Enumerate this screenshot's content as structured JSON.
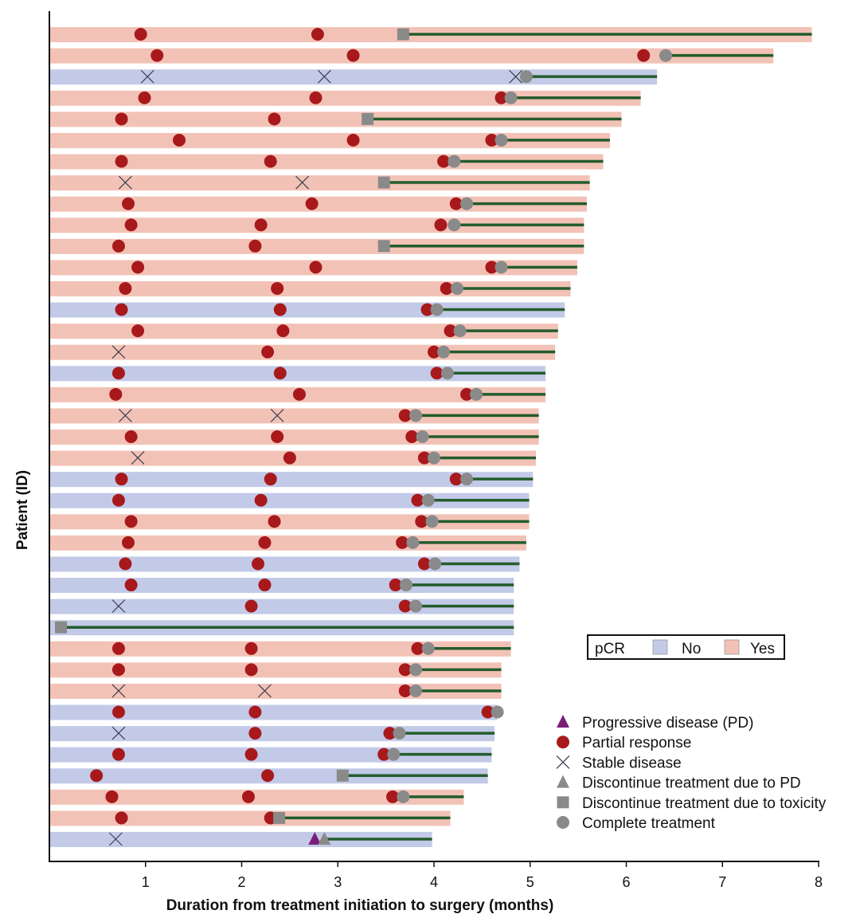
{
  "chart_data": {
    "type": "swimmer",
    "xlabel": "Duration from treatment initiation to surgery (months)",
    "ylabel": "Patient (ID)",
    "xlim": [
      0,
      8
    ],
    "xticks": [
      1,
      2,
      3,
      4,
      5,
      6,
      7,
      8
    ],
    "grid": false,
    "colors": {
      "pcr_no": "#c2cae8",
      "pcr_yes": "#f2c2b6",
      "PD": "#7a1f78",
      "PR": "#a8191c",
      "SD": "#3a4050",
      "DC_PD": "#8a8a8a",
      "DC_TOX": "#8a8a8a",
      "CT": "#8a8a8a",
      "line": "#245c2c"
    },
    "pcr_legend": {
      "title": "pCR",
      "no": "No",
      "yes": "Yes",
      "placement": "right"
    },
    "event_legend": [
      {
        "type": "PD",
        "label": "Progressive disease (PD)",
        "shape": "triangle"
      },
      {
        "type": "PR",
        "label": "Partial response",
        "shape": "circle"
      },
      {
        "type": "SD",
        "label": "Stable disease",
        "shape": "cross"
      },
      {
        "type": "DC_PD",
        "label": "Discontinue treatment due to PD",
        "shape": "triangle"
      },
      {
        "type": "DC_TOX",
        "label": "Discontinue treatment due to toxicity",
        "shape": "square"
      },
      {
        "type": "CT",
        "label": "Complete treatment",
        "shape": "circle"
      }
    ],
    "patients": [
      {
        "pcr": "Yes",
        "duration": 7.93,
        "events": [
          [
            "PR",
            0.95
          ],
          [
            "PR",
            2.79
          ],
          [
            "DC_TOX",
            3.68
          ]
        ]
      },
      {
        "pcr": "Yes",
        "duration": 7.53,
        "events": [
          [
            "PR",
            1.12
          ],
          [
            "PR",
            3.16
          ],
          [
            "PR",
            6.18
          ],
          [
            "CT",
            6.41
          ]
        ]
      },
      {
        "pcr": "No",
        "duration": 6.32,
        "events": [
          [
            "SD",
            1.02
          ],
          [
            "SD",
            2.86
          ],
          [
            "SD",
            4.85
          ],
          [
            "CT",
            4.96
          ]
        ]
      },
      {
        "pcr": "Yes",
        "duration": 6.15,
        "events": [
          [
            "PR",
            0.99
          ],
          [
            "PR",
            2.77
          ],
          [
            "PR",
            4.7
          ],
          [
            "CT",
            4.8
          ]
        ]
      },
      {
        "pcr": "Yes",
        "duration": 5.95,
        "events": [
          [
            "PR",
            0.75
          ],
          [
            "PR",
            2.34
          ],
          [
            "DC_TOX",
            3.31
          ]
        ]
      },
      {
        "pcr": "Yes",
        "duration": 5.83,
        "events": [
          [
            "PR",
            1.35
          ],
          [
            "PR",
            3.16
          ],
          [
            "PR",
            4.6
          ],
          [
            "CT",
            4.7
          ]
        ]
      },
      {
        "pcr": "Yes",
        "duration": 5.76,
        "events": [
          [
            "PR",
            0.75
          ],
          [
            "PR",
            2.3
          ],
          [
            "PR",
            4.1
          ],
          [
            "CT",
            4.21
          ]
        ]
      },
      {
        "pcr": "Yes",
        "duration": 5.62,
        "events": [
          [
            "SD",
            0.79
          ],
          [
            "SD",
            2.63
          ],
          [
            "DC_TOX",
            3.48
          ]
        ]
      },
      {
        "pcr": "Yes",
        "duration": 5.59,
        "events": [
          [
            "PR",
            0.82
          ],
          [
            "PR",
            2.73
          ],
          [
            "PR",
            4.23
          ],
          [
            "CT",
            4.34
          ]
        ]
      },
      {
        "pcr": "Yes",
        "duration": 5.56,
        "events": [
          [
            "PR",
            0.85
          ],
          [
            "PR",
            2.2
          ],
          [
            "PR",
            4.07
          ],
          [
            "CT",
            4.21
          ]
        ]
      },
      {
        "pcr": "Yes",
        "duration": 5.56,
        "events": [
          [
            "PR",
            0.72
          ],
          [
            "PR",
            2.14
          ],
          [
            "DC_TOX",
            3.48
          ]
        ]
      },
      {
        "pcr": "Yes",
        "duration": 5.49,
        "events": [
          [
            "PR",
            0.92
          ],
          [
            "PR",
            2.77
          ],
          [
            "PR",
            4.6
          ],
          [
            "CT",
            4.7
          ]
        ]
      },
      {
        "pcr": "Yes",
        "duration": 5.42,
        "events": [
          [
            "PR",
            0.79
          ],
          [
            "PR",
            2.37
          ],
          [
            "PR",
            4.13
          ],
          [
            "CT",
            4.24
          ]
        ]
      },
      {
        "pcr": "No",
        "duration": 5.36,
        "events": [
          [
            "PR",
            0.75
          ],
          [
            "PR",
            2.4
          ],
          [
            "PR",
            3.93
          ],
          [
            "CT",
            4.03
          ]
        ]
      },
      {
        "pcr": "Yes",
        "duration": 5.29,
        "events": [
          [
            "PR",
            0.92
          ],
          [
            "PR",
            2.43
          ],
          [
            "PR",
            4.17
          ],
          [
            "CT",
            4.27
          ]
        ]
      },
      {
        "pcr": "Yes",
        "duration": 5.26,
        "events": [
          [
            "SD",
            0.72
          ],
          [
            "PR",
            2.27
          ],
          [
            "PR",
            4.0
          ],
          [
            "CT",
            4.1
          ]
        ]
      },
      {
        "pcr": "No",
        "duration": 5.16,
        "events": [
          [
            "PR",
            0.72
          ],
          [
            "PR",
            2.4
          ],
          [
            "PR",
            4.03
          ],
          [
            "CT",
            4.14
          ]
        ]
      },
      {
        "pcr": "Yes",
        "duration": 5.16,
        "events": [
          [
            "PR",
            0.69
          ],
          [
            "PR",
            2.6
          ],
          [
            "PR",
            4.34
          ],
          [
            "CT",
            4.44
          ]
        ]
      },
      {
        "pcr": "Yes",
        "duration": 5.09,
        "events": [
          [
            "SD",
            0.79
          ],
          [
            "SD",
            2.37
          ],
          [
            "PR",
            3.7
          ],
          [
            "CT",
            3.81
          ]
        ]
      },
      {
        "pcr": "Yes",
        "duration": 5.09,
        "events": [
          [
            "PR",
            0.85
          ],
          [
            "PR",
            2.37
          ],
          [
            "PR",
            3.77
          ],
          [
            "CT",
            3.88
          ]
        ]
      },
      {
        "pcr": "Yes",
        "duration": 5.06,
        "events": [
          [
            "SD",
            0.92
          ],
          [
            "PR",
            2.5
          ],
          [
            "PR",
            3.9
          ],
          [
            "CT",
            4.0
          ]
        ]
      },
      {
        "pcr": "No",
        "duration": 5.03,
        "events": [
          [
            "PR",
            0.75
          ],
          [
            "PR",
            2.3
          ],
          [
            "PR",
            4.23
          ],
          [
            "CT",
            4.34
          ]
        ]
      },
      {
        "pcr": "No",
        "duration": 4.99,
        "events": [
          [
            "PR",
            0.72
          ],
          [
            "PR",
            2.2
          ],
          [
            "PR",
            3.83
          ],
          [
            "CT",
            3.94
          ]
        ]
      },
      {
        "pcr": "Yes",
        "duration": 4.99,
        "events": [
          [
            "PR",
            0.85
          ],
          [
            "PR",
            2.34
          ],
          [
            "PR",
            3.87
          ],
          [
            "CT",
            3.98
          ]
        ]
      },
      {
        "pcr": "Yes",
        "duration": 4.96,
        "events": [
          [
            "PR",
            0.82
          ],
          [
            "PR",
            2.24
          ],
          [
            "PR",
            3.67
          ],
          [
            "CT",
            3.78
          ]
        ]
      },
      {
        "pcr": "No",
        "duration": 4.89,
        "events": [
          [
            "PR",
            0.79
          ],
          [
            "PR",
            2.17
          ],
          [
            "PR",
            3.9
          ],
          [
            "CT",
            4.01
          ]
        ]
      },
      {
        "pcr": "No",
        "duration": 4.83,
        "events": [
          [
            "PR",
            0.85
          ],
          [
            "PR",
            2.24
          ],
          [
            "PR",
            3.6
          ],
          [
            "CT",
            3.71
          ]
        ]
      },
      {
        "pcr": "No",
        "duration": 4.83,
        "events": [
          [
            "SD",
            0.72
          ],
          [
            "PR",
            2.1
          ],
          [
            "PR",
            3.7
          ],
          [
            "CT",
            3.81
          ]
        ]
      },
      {
        "pcr": "No",
        "duration": 4.83,
        "events": [
          [
            "DC_TOX",
            0.12
          ]
        ]
      },
      {
        "pcr": "Yes",
        "duration": 4.8,
        "events": [
          [
            "PR",
            0.72
          ],
          [
            "PR",
            2.1
          ],
          [
            "PR",
            3.83
          ],
          [
            "CT",
            3.94
          ]
        ]
      },
      {
        "pcr": "Yes",
        "duration": 4.7,
        "events": [
          [
            "PR",
            0.72
          ],
          [
            "PR",
            2.1
          ],
          [
            "PR",
            3.7
          ],
          [
            "CT",
            3.81
          ]
        ]
      },
      {
        "pcr": "Yes",
        "duration": 4.7,
        "events": [
          [
            "SD",
            0.72
          ],
          [
            "SD",
            2.24
          ],
          [
            "PR",
            3.7
          ],
          [
            "CT",
            3.81
          ]
        ]
      },
      {
        "pcr": "No",
        "duration": 4.66,
        "events": [
          [
            "PR",
            0.72
          ],
          [
            "PR",
            2.14
          ],
          [
            "PR",
            4.56
          ],
          [
            "CT",
            4.66
          ]
        ]
      },
      {
        "pcr": "No",
        "duration": 4.63,
        "events": [
          [
            "SD",
            0.72
          ],
          [
            "PR",
            2.14
          ],
          [
            "PR",
            3.54
          ],
          [
            "CT",
            3.64
          ]
        ]
      },
      {
        "pcr": "No",
        "duration": 4.6,
        "events": [
          [
            "PR",
            0.72
          ],
          [
            "PR",
            2.1
          ],
          [
            "PR",
            3.48
          ],
          [
            "CT",
            3.58
          ]
        ]
      },
      {
        "pcr": "No",
        "duration": 4.56,
        "events": [
          [
            "PR",
            0.49
          ],
          [
            "PR",
            2.27
          ],
          [
            "DC_TOX",
            3.05
          ]
        ]
      },
      {
        "pcr": "Yes",
        "duration": 4.31,
        "events": [
          [
            "PR",
            0.65
          ],
          [
            "PR",
            2.07
          ],
          [
            "PR",
            3.57
          ],
          [
            "CT",
            3.68
          ]
        ]
      },
      {
        "pcr": "Yes",
        "duration": 4.17,
        "events": [
          [
            "PR",
            0.75
          ],
          [
            "PR",
            2.3
          ],
          [
            "DC_TOX",
            2.39
          ]
        ]
      },
      {
        "pcr": "No",
        "duration": 3.98,
        "events": [
          [
            "SD",
            0.69
          ],
          [
            "PD",
            2.76
          ],
          [
            "DC_PD",
            2.86
          ]
        ]
      }
    ]
  }
}
